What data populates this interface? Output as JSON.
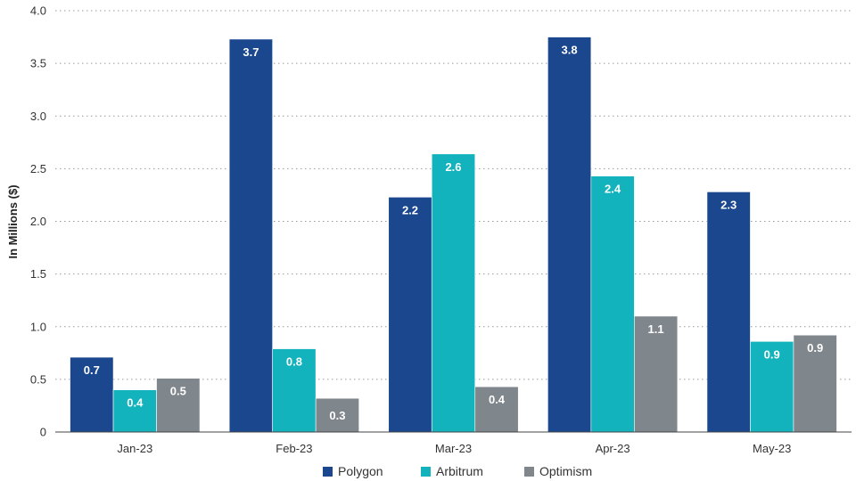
{
  "chart_data": {
    "type": "bar",
    "title": "",
    "xlabel": "",
    "ylabel": "In Millions ($)",
    "ylim": [
      0,
      4.0
    ],
    "yticks": [
      0,
      0.5,
      1.0,
      1.5,
      2.0,
      2.5,
      3.0,
      3.5,
      4.0
    ],
    "ytick_labels": [
      "0",
      "0.5",
      "1.0",
      "1.5",
      "2.0",
      "2.5",
      "3.0",
      "3.5",
      "4.0"
    ],
    "grid": "horizontal-dotted",
    "legend_position": "bottom-center",
    "categories": [
      "Jan-23",
      "Feb-23",
      "Mar-23",
      "Apr-23",
      "May-23"
    ],
    "series": [
      {
        "name": "Polygon",
        "color": "#1a478e",
        "values": [
          0.71,
          3.73,
          2.23,
          3.75,
          2.28
        ],
        "labels": [
          "0.7",
          "3.7",
          "2.2",
          "3.8",
          "2.3"
        ]
      },
      {
        "name": "Arbitrum",
        "color": "#12b3bd",
        "values": [
          0.4,
          0.79,
          2.64,
          2.43,
          0.86
        ],
        "labels": [
          "0.4",
          "0.8",
          "2.6",
          "2.4",
          "0.9"
        ]
      },
      {
        "name": "Optimism",
        "color": "#7f868c",
        "values": [
          0.51,
          0.32,
          0.43,
          1.1,
          0.92
        ],
        "labels": [
          "0.5",
          "0.3",
          "0.4",
          "1.1",
          "0.9"
        ]
      }
    ]
  }
}
